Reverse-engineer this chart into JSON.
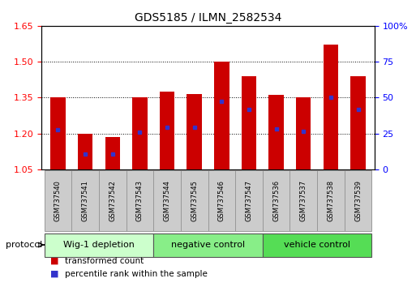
{
  "title": "GDS5185 / ILMN_2582534",
  "samples": [
    "GSM737540",
    "GSM737541",
    "GSM737542",
    "GSM737543",
    "GSM737544",
    "GSM737545",
    "GSM737546",
    "GSM737547",
    "GSM737536",
    "GSM737537",
    "GSM737538",
    "GSM737539"
  ],
  "bar_tops": [
    1.35,
    1.2,
    1.185,
    1.35,
    1.375,
    1.365,
    1.5,
    1.44,
    1.36,
    1.35,
    1.57,
    1.44
  ],
  "blue_vals": [
    1.215,
    1.115,
    1.115,
    1.205,
    1.225,
    1.225,
    1.335,
    1.3,
    1.22,
    1.21,
    1.35,
    1.3
  ],
  "ymin": 1.05,
  "ymax": 1.65,
  "yright_min": 0,
  "yright_max": 100,
  "yticks_left": [
    1.05,
    1.2,
    1.35,
    1.5,
    1.65
  ],
  "yticks_right": [
    0,
    25,
    50,
    75,
    100
  ],
  "ytick_labels_right": [
    "0",
    "25",
    "50",
    "75",
    "100%"
  ],
  "bar_color": "#cc0000",
  "blue_color": "#3333cc",
  "baseline": 1.05,
  "protocols": [
    {
      "label": "Wig-1 depletion",
      "start": 0,
      "end": 4,
      "color": "#ccffcc"
    },
    {
      "label": "negative control",
      "start": 4,
      "end": 8,
      "color": "#88ee88"
    },
    {
      "label": "vehicle control",
      "start": 8,
      "end": 12,
      "color": "#55dd55"
    }
  ],
  "protocol_label": "protocol",
  "legend_red": "transformed count",
  "legend_blue": "percentile rank within the sample",
  "bar_width": 0.55,
  "bg_color": "#ffffff",
  "sample_box_color": "#cccccc",
  "sample_box_edge": "#999999"
}
